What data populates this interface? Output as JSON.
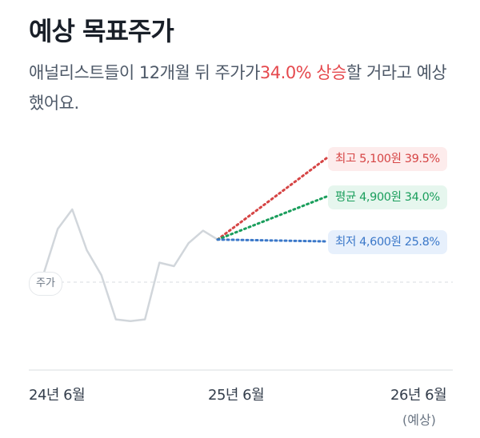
{
  "header": {
    "title": "예상 목표주가",
    "desc_prefix": "애널리스트들이 12개월 뒤 주가가",
    "desc_highlight": "34.0% 상승",
    "desc_suffix": "할 거라고 예상했어요."
  },
  "chart_data": {
    "type": "line",
    "series": [
      {
        "values": [
          3700,
          3960,
          4070,
          3840,
          3700,
          3450,
          3440,
          3450,
          3770,
          3750,
          3880,
          3950,
          3900
        ]
      }
    ],
    "target_price_chip": "주가",
    "current_price": 3660,
    "targets": [
      {
        "key": "high",
        "label": "최고 5,100원 39.5%",
        "price": 5100,
        "pct": 39.5,
        "color": "#d64545"
      },
      {
        "key": "avg",
        "label": "평균 4,900원 34.0%",
        "price": 4900,
        "pct": 34.0,
        "color": "#1a9e5c"
      },
      {
        "key": "low",
        "label": "최저 4,600원 25.8%",
        "price": 4600,
        "pct": 25.8,
        "color": "#3b78c9"
      }
    ],
    "x_ticks": [
      {
        "label": "24년 6월",
        "sub": ""
      },
      {
        "label": "25년 6월",
        "sub": ""
      },
      {
        "label": "26년 6월",
        "sub": "(예상)"
      }
    ],
    "grid": false,
    "baseline_dashed": true
  }
}
